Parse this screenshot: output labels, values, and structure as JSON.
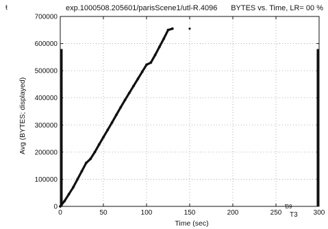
{
  "corner_mark": "ŧ",
  "chart_data": {
    "type": "scatter",
    "title": "exp.1000508.205601/parisScene1/utl-R.4096",
    "subtitle": "BYTES vs. Time, LR= 00 %",
    "xlabel": "Time (sec)",
    "ylabel": "Avg (BYTES; displayed)",
    "xlim": [
      0,
      300
    ],
    "ylim": [
      0,
      700000
    ],
    "x_ticks": [
      0,
      50,
      100,
      150,
      200,
      250,
      300
    ],
    "y_ticks": [
      0,
      100000,
      200000,
      300000,
      400000,
      500000,
      600000,
      700000
    ],
    "grid": true,
    "legend": "none",
    "series": [
      {
        "points": [
          [
            0,
            0
          ],
          [
            5,
            20000
          ],
          [
            10,
            45000
          ],
          [
            15,
            70000
          ],
          [
            20,
            100000
          ],
          [
            25,
            130000
          ],
          [
            30,
            160000
          ],
          [
            35,
            175000
          ],
          [
            40,
            200000
          ],
          [
            45,
            228000
          ],
          [
            50,
            255000
          ],
          [
            55,
            282000
          ],
          [
            60,
            309000
          ],
          [
            65,
            337000
          ],
          [
            70,
            365000
          ],
          [
            75,
            392000
          ],
          [
            80,
            418000
          ],
          [
            85,
            444000
          ],
          [
            90,
            470000
          ],
          [
            95,
            496000
          ],
          [
            100,
            522000
          ],
          [
            105,
            530000
          ],
          [
            110,
            558000
          ],
          [
            115,
            588000
          ],
          [
            120,
            618000
          ],
          [
            125,
            650000
          ],
          [
            130,
            655000
          ],
          [
            150,
            655000
          ]
        ]
      }
    ],
    "annotations": [
      "T3",
      "Ɓ9"
    ]
  },
  "colors": {
    "data": "#111111",
    "axis": "#111111",
    "grid": "#9a9a9a",
    "background": "#ffffff"
  }
}
